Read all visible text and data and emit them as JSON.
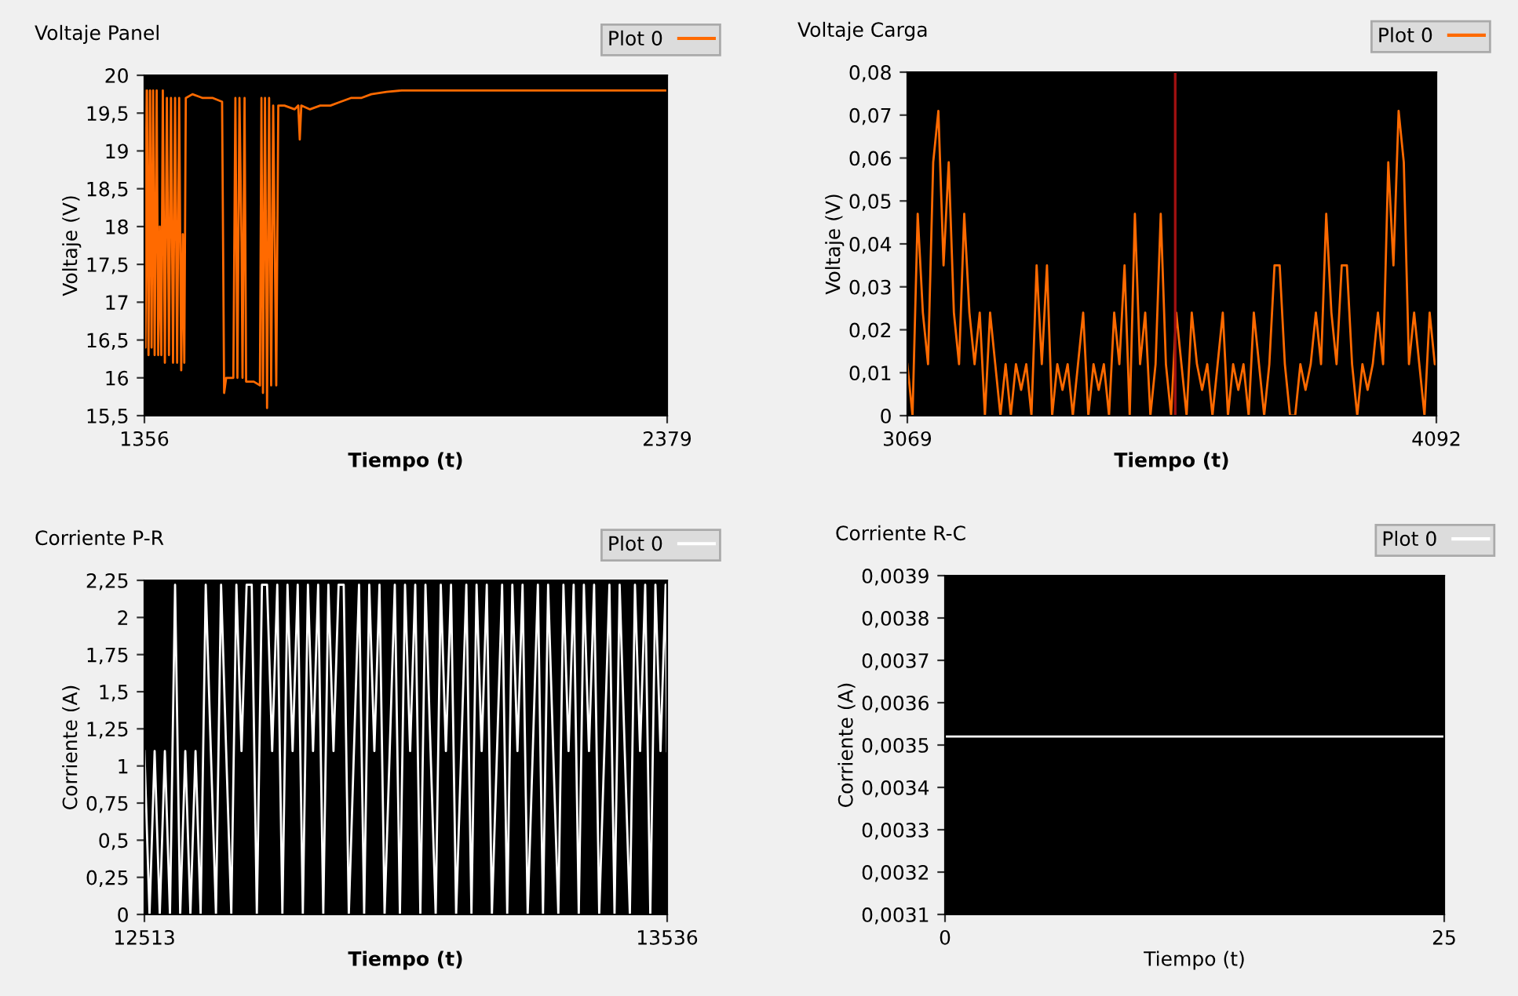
{
  "chart_data": [
    {
      "type": "line",
      "title": "Voltaje Panel",
      "xlabel": "Tiempo (t)",
      "ylabel": "Voltaje (V)",
      "legend": "top right",
      "grid": false,
      "x": [
        1356,
        1358,
        1361,
        1364,
        1367,
        1370,
        1373,
        1376,
        1380,
        1383,
        1386,
        1389,
        1392,
        1396,
        1400,
        1404,
        1408,
        1412,
        1416,
        1420,
        1424,
        1428,
        1431,
        1434,
        1437,
        1450,
        1470,
        1490,
        1508,
        1512,
        1516,
        1530,
        1534,
        1538,
        1542,
        1546,
        1548,
        1552,
        1555,
        1570,
        1582,
        1585,
        1588,
        1592,
        1596,
        1600,
        1604,
        1608,
        1611,
        1614,
        1618,
        1630,
        1650,
        1657,
        1660,
        1663,
        1680,
        1700,
        1720,
        1740,
        1760,
        1780,
        1800,
        1830,
        1860,
        1900,
        2379
      ],
      "series": [
        {
          "name": "Plot 0",
          "color": "#ff6a00",
          "values": [
            19.8,
            16.4,
            19.8,
            16.3,
            19.8,
            16.4,
            19.8,
            16.3,
            19.8,
            16.3,
            18.0,
            16.3,
            19.8,
            16.2,
            19.7,
            16.3,
            19.7,
            16.2,
            19.7,
            16.2,
            19.7,
            16.1,
            17.9,
            16.2,
            19.7,
            19.75,
            19.7,
            19.7,
            19.65,
            15.8,
            16.0,
            16.0,
            19.7,
            16.0,
            19.7,
            17.8,
            16.0,
            19.7,
            15.95,
            15.95,
            15.9,
            19.7,
            15.8,
            19.7,
            15.6,
            19.7,
            15.9,
            19.6,
            17.8,
            15.9,
            19.6,
            19.6,
            19.55,
            19.6,
            19.15,
            19.6,
            19.55,
            19.6,
            19.6,
            19.65,
            19.7,
            19.7,
            19.75,
            19.78,
            19.8,
            19.8,
            19.8
          ]
        }
      ],
      "xlim": [
        1356,
        2379
      ],
      "xticks": [
        1356,
        2379
      ],
      "ylim": [
        15.5,
        20
      ],
      "yticks": [
        {
          "value": 15.5,
          "label": "15,5"
        },
        16,
        {
          "value": 16.5,
          "label": "16,5"
        },
        17,
        {
          "value": 17.5,
          "label": "17,5"
        },
        18,
        {
          "value": 18.5,
          "label": "18,5"
        },
        19,
        {
          "value": 19.5,
          "label": "19,5"
        },
        20
      ]
    },
    {
      "type": "line",
      "title": "Voltaje Carga",
      "xlabel": "Tiempo (t)",
      "ylabel": "Voltaje (V)",
      "legend": "top right",
      "grid": false,
      "x": [
        3069,
        3079,
        3089,
        3099,
        3109,
        3119,
        3129,
        3139,
        3149,
        3159,
        3169,
        3179,
        3189,
        3199,
        3209,
        3219,
        3229,
        3239,
        3249,
        3259,
        3269,
        3279,
        3289,
        3299,
        3309,
        3319,
        3329,
        3339,
        3349,
        3359,
        3369,
        3379,
        3389,
        3399,
        3409,
        3419,
        3429,
        3439,
        3449,
        3459,
        3469,
        3479,
        3489,
        3499,
        3509,
        3519,
        3529,
        3539,
        3549,
        3559,
        3569,
        3579,
        3589,
        3599,
        3609,
        3619,
        3629,
        3639,
        3649,
        3659,
        3669,
        3679,
        3689,
        3699,
        3709,
        3719,
        3729,
        3739,
        3749,
        3759,
        3769,
        3779,
        3789,
        3799,
        3809,
        3819,
        3829,
        3839,
        3849,
        3859,
        3869,
        3879,
        3889,
        3899,
        3909,
        3919,
        3929,
        3939,
        3949,
        3959,
        3969,
        3979,
        3989,
        3999,
        4009,
        4019,
        4029,
        4039,
        4049,
        4059,
        4069,
        4079,
        4089,
        4092
      ],
      "series": [
        {
          "name": "Plot 0",
          "color": "#ff6a00",
          "values": [
            0.012,
            0,
            0.047,
            0.024,
            0.012,
            0.059,
            0.071,
            0.035,
            0.059,
            0.024,
            0.012,
            0.047,
            0.024,
            0.012,
            0.024,
            0,
            0.024,
            0.012,
            0,
            0.012,
            0,
            0.012,
            0.006,
            0.012,
            0,
            0.035,
            0.012,
            0.035,
            0,
            0.012,
            0.006,
            0.012,
            0,
            0.012,
            0.024,
            0,
            0.012,
            0.006,
            0.012,
            0,
            0.024,
            0.012,
            0.035,
            0,
            0.047,
            0.012,
            0.024,
            0,
            0.012,
            0.047,
            0.012,
            0,
            0.024,
            0.012,
            0,
            0.024,
            0.012,
            0.006,
            0.012,
            0,
            0.012,
            0.024,
            0,
            0.012,
            0.006,
            0.012,
            0,
            0.024,
            0.012,
            0,
            0.012,
            0.035,
            0.035,
            0.012,
            0,
            0,
            0.012,
            0.006,
            0.012,
            0.024,
            0.012,
            0.047,
            0.024,
            0.012,
            0.035,
            0.035,
            0.012,
            0,
            0.012,
            0.006,
            0.012,
            0.024,
            0.012,
            0.059,
            0.035,
            0.071,
            0.059,
            0.012,
            0.024,
            0.012,
            0,
            0.024,
            0.012,
            0.012
          ]
        }
      ],
      "ref_lines": [
        {
          "axis": "x",
          "value": 3587,
          "color": "#a01010"
        }
      ],
      "xlim": [
        3069,
        4092
      ],
      "xticks": [
        3069,
        4092
      ],
      "ylim": [
        0,
        0.08
      ],
      "yticks": [
        0,
        {
          "value": 0.01,
          "label": "0,01"
        },
        {
          "value": 0.02,
          "label": "0,02"
        },
        {
          "value": 0.03,
          "label": "0,03"
        },
        {
          "value": 0.04,
          "label": "0,04"
        },
        {
          "value": 0.05,
          "label": "0,05"
        },
        {
          "value": 0.06,
          "label": "0,06"
        },
        {
          "value": 0.07,
          "label": "0,07"
        },
        {
          "value": 0.08,
          "label": "0,08"
        }
      ]
    },
    {
      "type": "line",
      "title": "Corriente P-R",
      "xlabel": "Tiempo (t)",
      "ylabel": "Corriente (A)",
      "legend": "top right",
      "grid": false,
      "x": [
        12513,
        12523,
        12533,
        12543,
        12553,
        12563,
        12573,
        12583,
        12593,
        12603,
        12613,
        12623,
        12633,
        12643,
        12653,
        12663,
        12673,
        12683,
        12693,
        12703,
        12713,
        12723,
        12733,
        12743,
        12753,
        12763,
        12773,
        12783,
        12793,
        12803,
        12813,
        12823,
        12833,
        12843,
        12853,
        12863,
        12873,
        12883,
        12893,
        12903,
        12913,
        12923,
        12933,
        12943,
        12953,
        12963,
        12973,
        12983,
        12993,
        13003,
        13013,
        13023,
        13033,
        13043,
        13053,
        13063,
        13073,
        13083,
        13093,
        13103,
        13113,
        13123,
        13133,
        13143,
        13153,
        13163,
        13173,
        13183,
        13193,
        13203,
        13213,
        13223,
        13233,
        13243,
        13253,
        13263,
        13273,
        13283,
        13293,
        13303,
        13313,
        13323,
        13333,
        13343,
        13353,
        13363,
        13373,
        13383,
        13393,
        13403,
        13413,
        13423,
        13433,
        13443,
        13453,
        13463,
        13473,
        13483,
        13493,
        13503,
        13513,
        13523,
        13533,
        13536
      ],
      "series": [
        {
          "name": "Plot 0",
          "color": "#ffffff",
          "values": [
            1.1,
            0,
            1.1,
            0,
            1.1,
            0,
            2.22,
            0,
            1.1,
            0,
            1.1,
            0,
            2.22,
            1.1,
            0,
            2.22,
            1.1,
            0,
            2.22,
            1.1,
            2.22,
            2.22,
            0,
            2.22,
            2.22,
            1.1,
            2.22,
            0,
            2.22,
            1.1,
            2.22,
            0,
            2.22,
            1.1,
            2.22,
            0,
            2.22,
            1.1,
            2.22,
            2.22,
            0,
            1.1,
            2.22,
            0,
            2.22,
            1.1,
            2.22,
            0,
            1.1,
            2.22,
            0,
            2.22,
            1.1,
            2.22,
            0,
            2.22,
            1.1,
            0,
            2.22,
            1.1,
            2.22,
            0,
            1.1,
            2.22,
            0,
            2.22,
            1.1,
            2.22,
            0,
            1.1,
            2.22,
            0,
            2.22,
            1.1,
            2.22,
            0,
            1.1,
            2.22,
            0,
            2.22,
            1.1,
            0,
            2.22,
            1.1,
            2.22,
            0,
            2.22,
            1.1,
            2.22,
            0,
            1.1,
            2.22,
            0,
            2.22,
            1.1,
            0,
            2.22,
            1.1,
            2.22,
            0,
            2.22,
            1.1,
            2.22,
            1.1
          ]
        }
      ],
      "xlim": [
        12513,
        13536
      ],
      "xticks": [
        12513,
        13536
      ],
      "ylim": [
        0,
        2.25
      ],
      "yticks": [
        0,
        {
          "value": 0.25,
          "label": "0,25"
        },
        {
          "value": 0.5,
          "label": "0,5"
        },
        {
          "value": 0.75,
          "label": "0,75"
        },
        1,
        {
          "value": 1.25,
          "label": "1,25"
        },
        {
          "value": 1.5,
          "label": "1,5"
        },
        {
          "value": 1.75,
          "label": "1,75"
        },
        2,
        {
          "value": 2.25,
          "label": "2,25"
        }
      ]
    },
    {
      "type": "line",
      "title": "Corriente R-C",
      "xlabel": "Tiempo (t)",
      "ylabel": "Corriente (A)",
      "legend": "top right",
      "grid": false,
      "x": [
        0,
        25
      ],
      "series": [
        {
          "name": "Plot 0",
          "color": "#ffffff",
          "values": [
            0.00352,
            0.00352
          ]
        }
      ],
      "xlim": [
        0,
        25
      ],
      "xticks": [
        0,
        25
      ],
      "ylim": [
        0.0031,
        0.0039
      ],
      "yticks": [
        {
          "value": 0.0031,
          "label": "0,0031"
        },
        {
          "value": 0.0032,
          "label": "0,0032"
        },
        {
          "value": 0.0033,
          "label": "0,0033"
        },
        {
          "value": 0.0034,
          "label": "0,0034"
        },
        {
          "value": 0.0035,
          "label": "0,0035"
        },
        {
          "value": 0.0036,
          "label": "0,0036"
        },
        {
          "value": 0.0037,
          "label": "0,0037"
        },
        {
          "value": 0.0038,
          "label": "0,0038"
        },
        {
          "value": 0.0039,
          "label": "0,0039"
        }
      ]
    }
  ]
}
